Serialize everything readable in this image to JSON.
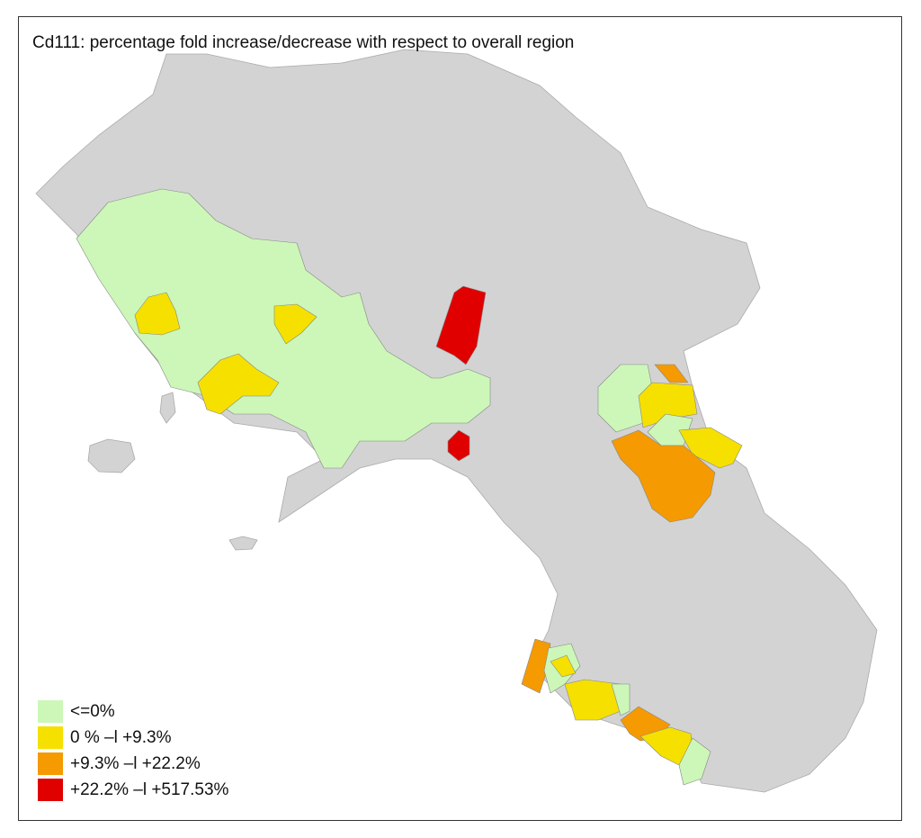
{
  "title": "Cd111: percentage fold increase/decrease with respect to overall region",
  "background_color": "#d3d3d3",
  "legend": [
    {
      "label": "<=0%",
      "color": "#ccf7b8"
    },
    {
      "label": "0 % –l +9.3%",
      "color": "#f5e000"
    },
    {
      "label": "+9.3% –l +22.2%",
      "color": "#f59a00"
    },
    {
      "label": "+22.2% –l +517.53%",
      "color": "#e00000"
    }
  ]
}
